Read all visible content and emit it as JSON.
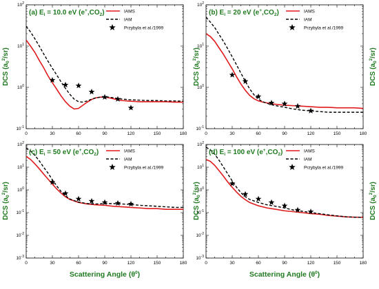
{
  "chart_data": [
    {
      "type": "line",
      "id": "a",
      "title_prefix": "(a) E",
      "title_sub": "i",
      "title_suffix": " = 10.0 eV (e",
      "title_sup1": "+",
      "title_mid": ",CO",
      "title_sub2": "2",
      "title_end": ")",
      "xlim": [
        0,
        180
      ],
      "ylim_log10": [
        -1,
        2
      ],
      "xticks": [
        0,
        30,
        60,
        90,
        120,
        150,
        180
      ],
      "ytick_exponents": [
        -1,
        0,
        1,
        2
      ],
      "legend_position": "top-right",
      "series": [
        {
          "name": "IAMS",
          "style": "solid",
          "color": "#e0191b",
          "x": [
            0,
            5,
            10,
            15,
            20,
            25,
            30,
            35,
            40,
            45,
            50,
            55,
            60,
            65,
            70,
            75,
            80,
            85,
            90,
            95,
            100,
            105,
            110,
            120,
            130,
            140,
            150,
            160,
            170,
            180
          ],
          "y": [
            14,
            10,
            7,
            4.5,
            3,
            1.9,
            1.3,
            0.9,
            0.62,
            0.45,
            0.35,
            0.3,
            0.31,
            0.37,
            0.44,
            0.51,
            0.56,
            0.58,
            0.58,
            0.56,
            0.53,
            0.5,
            0.48,
            0.46,
            0.45,
            0.45,
            0.45,
            0.45,
            0.44,
            0.44
          ]
        },
        {
          "name": "IAM",
          "style": "dashed",
          "color": "#000000",
          "x": [
            0,
            5,
            10,
            15,
            20,
            25,
            30,
            35,
            40,
            45,
            50,
            55,
            60,
            65,
            70,
            75,
            80,
            85,
            90,
            95,
            100,
            105,
            110,
            120,
            130,
            140,
            150,
            160,
            170,
            180
          ],
          "y": [
            30,
            22,
            15,
            10,
            6.5,
            4.3,
            2.9,
            2,
            1.35,
            0.95,
            0.68,
            0.52,
            0.45,
            0.44,
            0.47,
            0.52,
            0.56,
            0.58,
            0.59,
            0.58,
            0.56,
            0.54,
            0.52,
            0.5,
            0.49,
            0.48,
            0.48,
            0.47,
            0.47,
            0.46
          ]
        },
        {
          "name": "Przybyla et al./1999",
          "style": "markers",
          "color": "#000000",
          "x": [
            30,
            45,
            60,
            75,
            90,
            105,
            120
          ],
          "y": [
            1.5,
            1.15,
            1.1,
            0.78,
            0.58,
            0.52,
            0.32
          ]
        }
      ]
    },
    {
      "type": "line",
      "id": "b",
      "title_prefix": "(b) E",
      "title_sub": "i",
      "title_suffix": " = 20 eV (e",
      "title_sup1": "+",
      "title_mid": ",CO",
      "title_sub2": "2",
      "title_end": ")",
      "xlim": [
        0,
        180
      ],
      "ylim_log10": [
        -1,
        2
      ],
      "xticks": [
        0,
        30,
        60,
        90,
        120,
        150,
        180
      ],
      "ytick_exponents": [
        -1,
        0,
        1,
        2
      ],
      "legend_position": "top-right",
      "series": [
        {
          "name": "IAMS",
          "style": "solid",
          "color": "#e0191b",
          "x": [
            0,
            5,
            10,
            15,
            20,
            25,
            30,
            35,
            40,
            45,
            50,
            55,
            60,
            65,
            70,
            75,
            80,
            90,
            100,
            110,
            120,
            130,
            140,
            150,
            160,
            170,
            180
          ],
          "y": [
            20,
            17,
            13,
            9,
            6.3,
            4.2,
            2.8,
            1.8,
            1.2,
            0.85,
            0.64,
            0.53,
            0.47,
            0.44,
            0.42,
            0.4,
            0.39,
            0.37,
            0.36,
            0.35,
            0.34,
            0.33,
            0.33,
            0.32,
            0.32,
            0.32,
            0.31
          ]
        },
        {
          "name": "IAM",
          "style": "dashed",
          "color": "#000000",
          "x": [
            0,
            5,
            10,
            15,
            20,
            25,
            30,
            35,
            40,
            45,
            50,
            55,
            60,
            65,
            70,
            75,
            80,
            90,
            100,
            110,
            120,
            130,
            140,
            150,
            160,
            170,
            180
          ],
          "y": [
            50,
            38,
            28,
            19,
            13,
            8.5,
            5.5,
            3.5,
            2.2,
            1.4,
            0.92,
            0.66,
            0.52,
            0.45,
            0.41,
            0.38,
            0.36,
            0.33,
            0.3,
            0.28,
            0.27,
            0.26,
            0.25,
            0.25,
            0.25,
            0.25,
            0.25
          ]
        },
        {
          "name": "Przybyla et al./1999",
          "style": "markers",
          "color": "#000000",
          "x": [
            30,
            45,
            60,
            75,
            90,
            105,
            120
          ],
          "y": [
            2,
            1.4,
            0.6,
            0.42,
            0.4,
            0.35,
            0.27
          ]
        }
      ]
    },
    {
      "type": "line",
      "id": "c",
      "title_prefix": "(c) E",
      "title_sub": "i",
      "title_suffix": " = 50 eV (e",
      "title_sup1": "+",
      "title_mid": ",CO",
      "title_sub2": "2",
      "title_end": ")",
      "xlim": [
        0,
        180
      ],
      "ylim_log10": [
        -3,
        2
      ],
      "xticks": [
        0,
        30,
        60,
        90,
        120,
        150,
        180
      ],
      "ytick_exponents": [
        -3,
        -2,
        -1,
        0,
        1,
        2
      ],
      "legend_position": "top-right",
      "series": [
        {
          "name": "IAMS",
          "style": "solid",
          "color": "#e0191b",
          "x": [
            0,
            5,
            10,
            15,
            20,
            25,
            30,
            35,
            40,
            45,
            50,
            60,
            70,
            80,
            90,
            100,
            110,
            120,
            130,
            140,
            150,
            160,
            170,
            180
          ],
          "y": [
            30,
            22,
            14,
            8.5,
            5,
            3,
            1.8,
            1.1,
            0.72,
            0.5,
            0.38,
            0.28,
            0.24,
            0.22,
            0.21,
            0.19,
            0.18,
            0.17,
            0.16,
            0.15,
            0.15,
            0.14,
            0.14,
            0.14
          ]
        },
        {
          "name": "IAM",
          "style": "dashed",
          "color": "#000000",
          "x": [
            0,
            5,
            10,
            15,
            20,
            25,
            30,
            35,
            40,
            45,
            50,
            60,
            70,
            80,
            90,
            100,
            110,
            120,
            130,
            140,
            150,
            160,
            170,
            180
          ],
          "y": [
            70,
            52,
            33,
            19,
            10,
            5.5,
            2.8,
            1.5,
            0.85,
            0.55,
            0.4,
            0.29,
            0.25,
            0.24,
            0.25,
            0.25,
            0.24,
            0.23,
            0.21,
            0.2,
            0.19,
            0.18,
            0.17,
            0.17
          ]
        },
        {
          "name": "Przybyla et al./1999",
          "style": "markers",
          "color": "#000000",
          "x": [
            30,
            45,
            60,
            75,
            90,
            105,
            120
          ],
          "y": [
            2.2,
            0.7,
            0.4,
            0.32,
            0.28,
            0.26,
            0.24
          ]
        }
      ]
    },
    {
      "type": "line",
      "id": "d",
      "title_prefix": "(d) E",
      "title_sub": "i",
      "title_suffix": " = 100 eV (e",
      "title_sup1": "+",
      "title_mid": ",CO",
      "title_sub2": "2",
      "title_end": ")",
      "xlim": [
        0,
        180
      ],
      "ylim_log10": [
        -3,
        2
      ],
      "xticks": [
        0,
        30,
        60,
        90,
        120,
        150,
        180
      ],
      "ytick_exponents": [
        -3,
        -2,
        -1,
        0,
        1,
        2
      ],
      "legend_position": "top-right",
      "series": [
        {
          "name": "IAMS",
          "style": "solid",
          "color": "#e0191b",
          "x": [
            0,
            5,
            10,
            15,
            20,
            25,
            30,
            35,
            40,
            45,
            50,
            60,
            70,
            80,
            90,
            100,
            110,
            120,
            130,
            140,
            150,
            160,
            170,
            180
          ],
          "y": [
            22,
            18,
            12,
            7,
            4,
            2.2,
            1.3,
            0.8,
            0.52,
            0.37,
            0.28,
            0.2,
            0.16,
            0.14,
            0.12,
            0.11,
            0.1,
            0.09,
            0.085,
            0.075,
            0.07,
            0.065,
            0.063,
            0.062
          ]
        },
        {
          "name": "IAM",
          "style": "dashed",
          "color": "#000000",
          "x": [
            0,
            5,
            10,
            15,
            20,
            25,
            30,
            35,
            40,
            45,
            50,
            60,
            70,
            80,
            90,
            100,
            110,
            120,
            130,
            140,
            150,
            160,
            170,
            180
          ],
          "y": [
            75,
            58,
            37,
            20,
            10,
            5,
            2.5,
            1.3,
            0.75,
            0.5,
            0.38,
            0.28,
            0.22,
            0.19,
            0.16,
            0.13,
            0.115,
            0.1,
            0.09,
            0.08,
            0.072,
            0.066,
            0.063,
            0.062
          ]
        },
        {
          "name": "Przybyla et al./1999",
          "style": "markers",
          "color": "#000000",
          "x": [
            30,
            45,
            60,
            75,
            90,
            105,
            120
          ],
          "y": [
            1.9,
            0.65,
            0.4,
            0.28,
            0.2,
            0.13,
            0.11
          ]
        }
      ]
    }
  ],
  "axis_labels": {
    "y_prefix": "DCS (a",
    "y_sub": "0",
    "y_sup": "2",
    "y_suffix": "/sr)",
    "x_text": "Scattering Angle (θ",
    "x_sup": "0",
    "x_end": ")"
  },
  "tick_base": "10"
}
